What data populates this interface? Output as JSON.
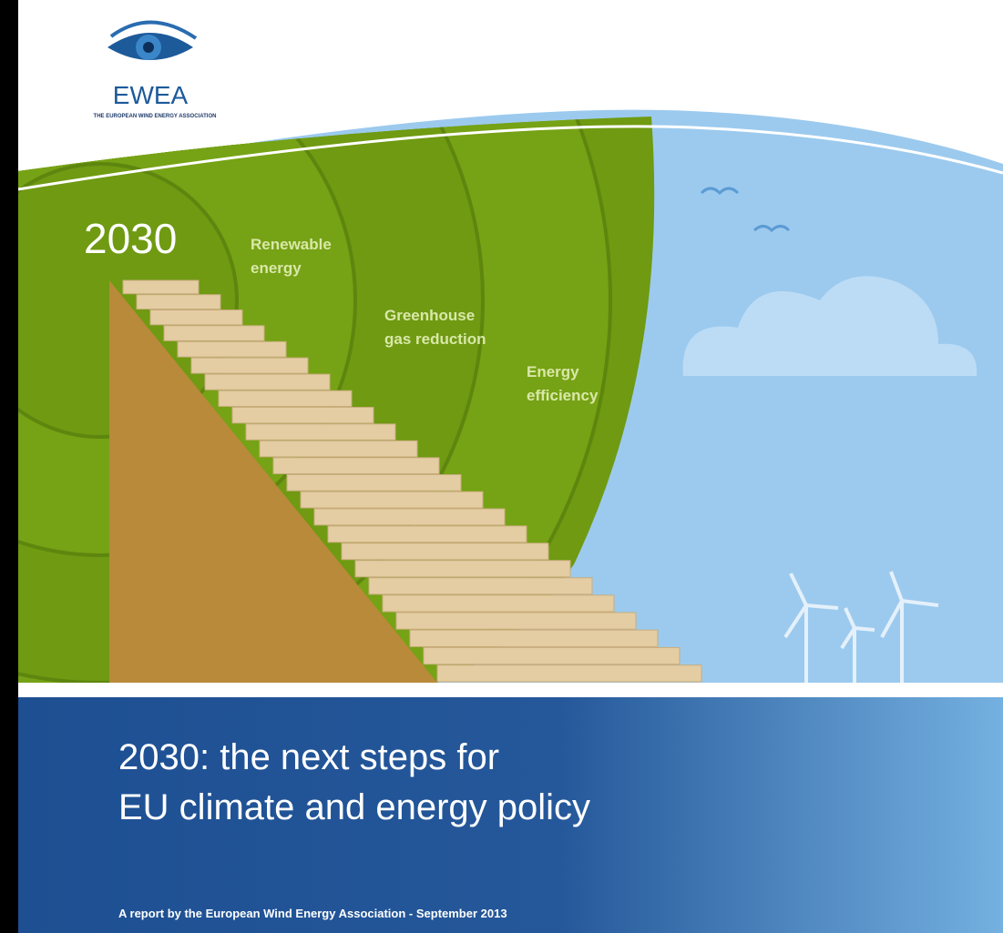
{
  "logo": {
    "name": "EWEA",
    "tagline": "THE EUROPEAN WIND ENERGY ASSOCIATION"
  },
  "illustration": {
    "year": "2030",
    "labels": [
      [
        "Renewable",
        "energy"
      ],
      [
        "Greenhouse",
        "gas reduction"
      ],
      [
        "Energy",
        "efficiency"
      ]
    ]
  },
  "title": {
    "lines": [
      "2030: the next steps for",
      "EU climate and energy policy"
    ]
  },
  "subtitle": "A report by the European Wind Energy Association - September 2013"
}
